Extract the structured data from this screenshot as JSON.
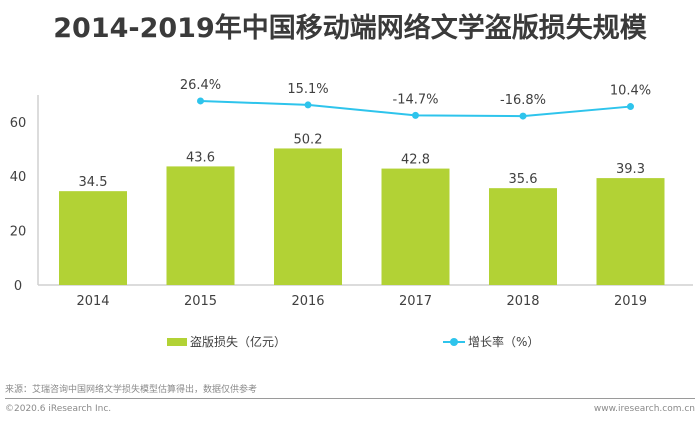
{
  "colors": {
    "bar": "#b2d235",
    "line": "#2ec4ec",
    "axis": "#d0d0d0",
    "text": "#404040"
  },
  "chart_data": {
    "type": "bar",
    "title": "2014-2019年中国移动端网络文学盗版损失规模",
    "categories": [
      "2014",
      "2015",
      "2016",
      "2017",
      "2018",
      "2019"
    ],
    "series": [
      {
        "name": "盗版损失（亿元）",
        "type": "bar",
        "values": [
          34.5,
          43.6,
          50.2,
          42.8,
          35.6,
          39.3
        ],
        "labels": [
          "34.5",
          "43.6",
          "50.2",
          "42.8",
          "35.6",
          "39.3"
        ]
      },
      {
        "name": "增长率（%）",
        "type": "line",
        "axis": "secondary (hidden)",
        "values": [
          null,
          26.4,
          15.1,
          -14.7,
          -16.8,
          10.4
        ],
        "labels": [
          null,
          "26.4%",
          "15.1%",
          "-14.7%",
          "-16.8%",
          "10.4%"
        ]
      }
    ],
    "yticks": [
      "0",
      "20",
      "40",
      "60"
    ],
    "ylim": [
      0,
      70
    ],
    "xlabel": "",
    "ylabel": "",
    "grid": false,
    "legend": "bottom"
  },
  "legend": {
    "bar_label": "盗版损失（亿元）",
    "line_label": "增长率（%）"
  },
  "footer": {
    "source": "来源：艾瑞咨询中国网络文学损失模型估算得出，数据仅供参考",
    "copyright": "©2020.6 iResearch Inc.",
    "website": "www.iresearch.com.cn"
  }
}
